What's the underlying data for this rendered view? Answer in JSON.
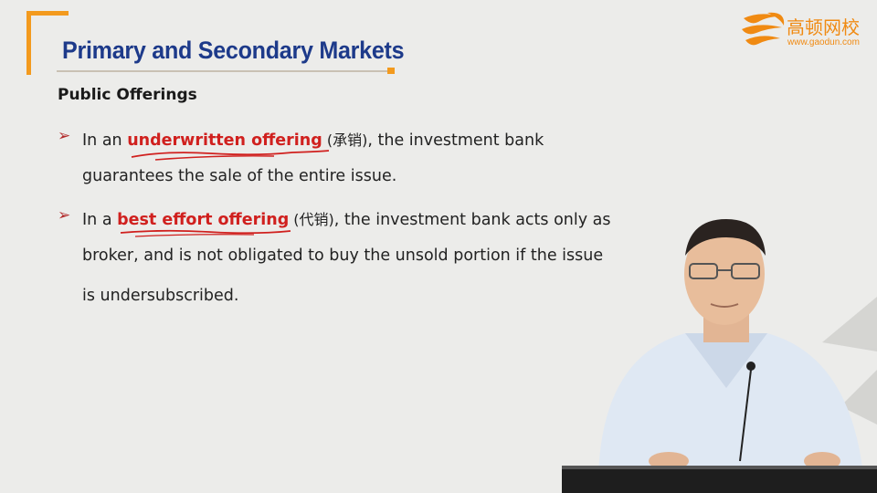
{
  "title": "Primary and Secondary Markets",
  "logo": {
    "name": "高顿网校",
    "url": "www.gaodun.com"
  },
  "subheading": "Public Offerings",
  "bullets": [
    {
      "prefix": "In an ",
      "term": "underwritten offering",
      "cn": " (承销)",
      "rest_line1": ", the investment bank",
      "line2": "guarantees the sale of the entire issue."
    },
    {
      "prefix": "In a ",
      "term": "best effort offering",
      "cn": " (代销)",
      "rest_line1": ", the investment bank acts only as",
      "line2": "broker, and is not obligated to buy the unsold portion if the issue",
      "line3": "is undersubscribed."
    }
  ],
  "colors": {
    "title": "#1d3a8a",
    "accent_orange": "#f39a1e",
    "highlight_red": "#d0201e",
    "background": "#ececea"
  }
}
